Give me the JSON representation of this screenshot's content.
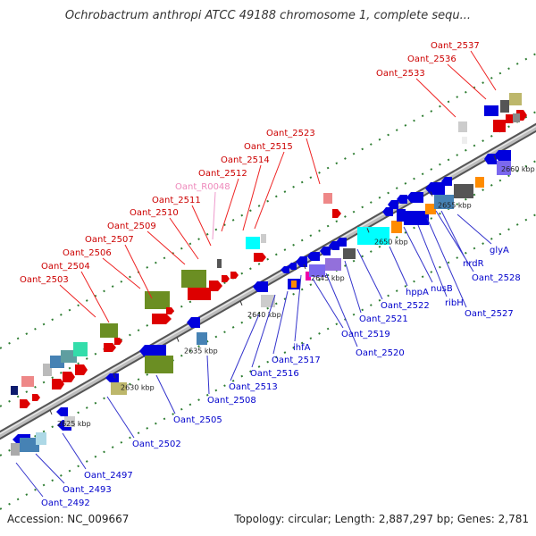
{
  "title": "Ochrobactrum anthropi ATCC 49188 chromosome 1, complete sequ...",
  "footer": {
    "accession": "Accession: NC_009667",
    "stats": "Topology: circular; Length: 2,887,297 bp; Genes: 2,781"
  },
  "colors": {
    "backbone": "#8c8c8c",
    "tick": "#2e7d32",
    "label_red": "#cc0000",
    "label_blue": "#0000cc",
    "label_pink": "#ee88bb",
    "leader_red": "#ee2222",
    "leader_blue": "#3333cc",
    "leader_pink": "#ee99cc"
  },
  "axis": {
    "unit": "kbp",
    "ticks": [
      {
        "kbp": 2625,
        "label": "2625 kbp"
      },
      {
        "kbp": 2630,
        "label": "2630 kbp"
      },
      {
        "kbp": 2635,
        "label": "2635 kbp"
      },
      {
        "kbp": 2640,
        "label": "2640 kbp"
      },
      {
        "kbp": 2645,
        "label": "2645 kbp"
      },
      {
        "kbp": 2650,
        "label": "2650 kbp"
      },
      {
        "kbp": 2655,
        "label": "2655 kbp"
      },
      {
        "kbp": 2660,
        "label": "2660 kbp"
      }
    ]
  },
  "labels_above": [
    {
      "text": "Oant_2503",
      "color": "red"
    },
    {
      "text": "Oant_2504",
      "color": "red"
    },
    {
      "text": "Oant_2506",
      "color": "red"
    },
    {
      "text": "Oant_2507",
      "color": "red"
    },
    {
      "text": "Oant_2509",
      "color": "red"
    },
    {
      "text": "Oant_2510",
      "color": "red"
    },
    {
      "text": "Oant_2511",
      "color": "red"
    },
    {
      "text": "Oant_R0048",
      "color": "pink"
    },
    {
      "text": "Oant_2512",
      "color": "red"
    },
    {
      "text": "Oant_2514",
      "color": "red"
    },
    {
      "text": "Oant_2515",
      "color": "red"
    },
    {
      "text": "Oant_2523",
      "color": "red"
    },
    {
      "text": "Oant_2533",
      "color": "red"
    },
    {
      "text": "Oant_2536",
      "color": "red"
    },
    {
      "text": "Oant_2537",
      "color": "red"
    }
  ],
  "labels_below": [
    {
      "text": "Oant_2492",
      "color": "blue"
    },
    {
      "text": "Oant_2493",
      "color": "blue"
    },
    {
      "text": "Oant_2497",
      "color": "blue"
    },
    {
      "text": "Oant_2502",
      "color": "blue"
    },
    {
      "text": "Oant_2505",
      "color": "blue"
    },
    {
      "text": "Oant_2508",
      "color": "blue"
    },
    {
      "text": "Oant_2513",
      "color": "blue"
    },
    {
      "text": "Oant_2516",
      "color": "blue"
    },
    {
      "text": "Oant_2517",
      "color": "blue"
    },
    {
      "text": "ihfA",
      "color": "blue"
    },
    {
      "text": "Oant_2519",
      "color": "blue"
    },
    {
      "text": "Oant_2520",
      "color": "blue"
    },
    {
      "text": "Oant_2521",
      "color": "blue"
    },
    {
      "text": "Oant_2522",
      "color": "blue"
    },
    {
      "text": "hppA",
      "color": "blue"
    },
    {
      "text": "nusB",
      "color": "blue"
    },
    {
      "text": "ribH",
      "color": "blue"
    },
    {
      "text": "Oant_2527",
      "color": "blue"
    },
    {
      "text": "Oant_2528",
      "color": "blue"
    },
    {
      "text": "nrdR",
      "color": "blue"
    },
    {
      "text": "glyA",
      "color": "blue"
    }
  ]
}
